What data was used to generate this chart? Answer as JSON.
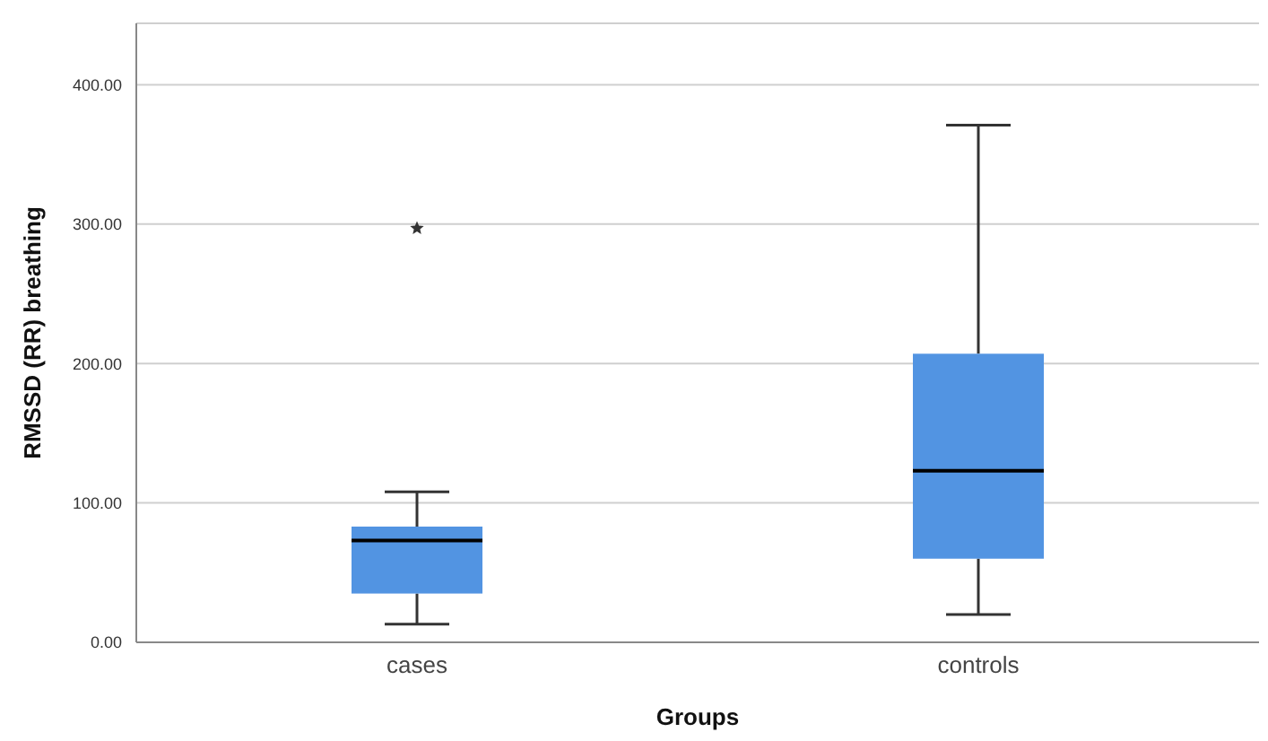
{
  "chart_data": {
    "type": "box",
    "xlabel": "Groups",
    "ylabel": "RMSSD (RR) breathing",
    "categories": [
      "cases",
      "controls"
    ],
    "series": [
      {
        "color": "#5294e2",
        "boxes": [
          {
            "low": 13,
            "q1": 35,
            "median": 73,
            "q3": 83,
            "high": 108,
            "outliers": [
              297
            ]
          },
          {
            "low": 20,
            "q1": 60,
            "median": 123,
            "q3": 207,
            "high": 371
          }
        ]
      }
    ],
    "ylim": [
      0,
      444
    ],
    "yticks": [
      {
        "value": 0,
        "label": "0.00"
      },
      {
        "value": 100,
        "label": "100.00"
      },
      {
        "value": 200,
        "label": "200.00"
      },
      {
        "value": 300,
        "label": "300.00"
      },
      {
        "value": 400,
        "label": "400.00"
      }
    ],
    "grid": "y",
    "marker": "star"
  }
}
